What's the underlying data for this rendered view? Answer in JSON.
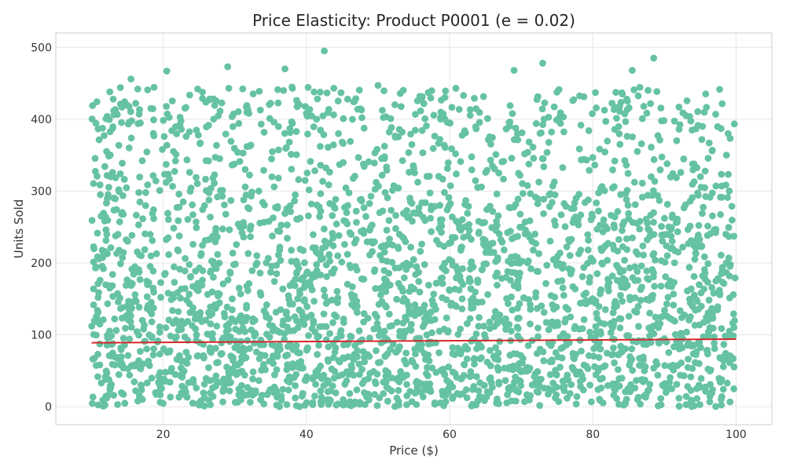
{
  "chart_data": {
    "type": "scatter",
    "title": "Price Elasticity: Product P0001 (e = 0.02)",
    "xlabel": "Price ($)",
    "ylabel": "Units Sold",
    "xlim": [
      5,
      105
    ],
    "ylim": [
      -25,
      520
    ],
    "xticks": [
      20,
      40,
      60,
      80,
      100
    ],
    "yticks": [
      0,
      100,
      200,
      300,
      400,
      500
    ],
    "grid": true,
    "colors": {
      "points": "#66c2a5",
      "trend": "#d62728",
      "grid": "#e6e6e6",
      "frame": "#cccccc"
    },
    "series": [
      {
        "kind": "points",
        "generator": {
          "x_range": [
            10,
            100
          ],
          "y_range": [
            0,
            500
          ],
          "count": 3000,
          "seed": 17,
          "distribution": "dense-low-y, sparse-high-y"
        },
        "highlight_points": [
          {
            "x": 42.5,
            "y": 495
          },
          {
            "x": 88.5,
            "y": 485
          },
          {
            "x": 73.0,
            "y": 478
          },
          {
            "x": 29.0,
            "y": 473
          },
          {
            "x": 37.0,
            "y": 470
          },
          {
            "x": 20.5,
            "y": 467
          },
          {
            "x": 69.0,
            "y": 468
          },
          {
            "x": 85.5,
            "y": 468
          },
          {
            "x": 15.5,
            "y": 456
          },
          {
            "x": 50.0,
            "y": 447
          }
        ]
      },
      {
        "kind": "trend",
        "x": [
          10,
          100
        ],
        "y": [
          89,
          94
        ]
      }
    ]
  }
}
